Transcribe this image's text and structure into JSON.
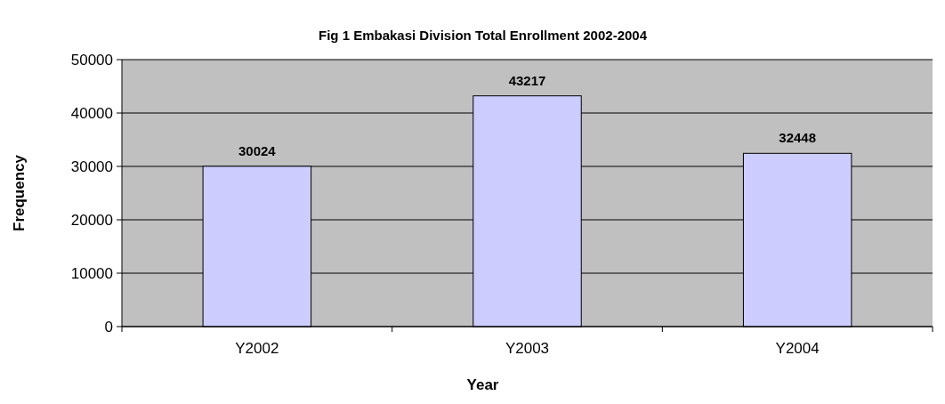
{
  "chart_data": {
    "type": "bar",
    "title": "Fig 1 Embakasi Division Total Enrollment 2002-2004",
    "xlabel": "Year",
    "ylabel": "Frequency",
    "categories": [
      "Y2002",
      "Y2003",
      "Y2004"
    ],
    "values": [
      30024,
      43217,
      32448
    ],
    "color": "#ccccff",
    "ylim": [
      0,
      50000
    ],
    "yticks": [
      0,
      10000,
      20000,
      30000,
      40000,
      50000
    ],
    "grid": "y",
    "data_labels": true
  }
}
